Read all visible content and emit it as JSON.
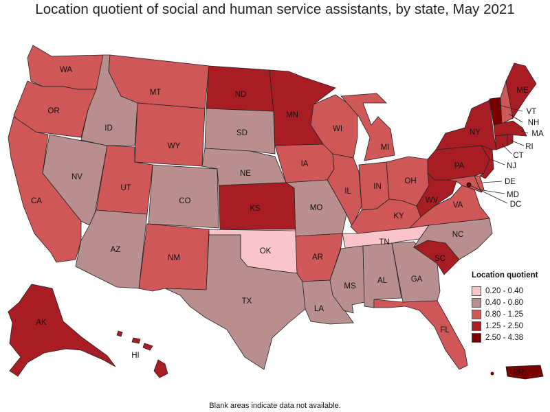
{
  "title": "Location quotient of social and human service assistants, by state, May 2021",
  "footnote": "Blank areas indicate data not available.",
  "legend": {
    "title": "Location quotient",
    "items": [
      {
        "label": "0.20 - 0.40",
        "color": "#f9c5cb"
      },
      {
        "label": "0.40 - 0.80",
        "color": "#b88e8e"
      },
      {
        "label": "0.80 - 1.25",
        "color": "#cf5757"
      },
      {
        "label": "1.25 - 2.50",
        "color": "#a81d24"
      },
      {
        "label": "2.50 - 4.38",
        "color": "#7a0000"
      }
    ]
  },
  "states": {
    "WA": {
      "label": "WA",
      "class": 2
    },
    "OR": {
      "label": "OR",
      "class": 2
    },
    "CA": {
      "label": "CA",
      "class": 2
    },
    "ID": {
      "label": "ID",
      "class": 1
    },
    "NV": {
      "label": "NV",
      "class": 1
    },
    "MT": {
      "label": "MT",
      "class": 2
    },
    "WY": {
      "label": "WY",
      "class": 2
    },
    "UT": {
      "label": "UT",
      "class": 2
    },
    "AZ": {
      "label": "AZ",
      "class": 1
    },
    "CO": {
      "label": "CO",
      "class": 1
    },
    "NM": {
      "label": "NM",
      "class": 2
    },
    "ND": {
      "label": "ND",
      "class": 3
    },
    "SD": {
      "label": "SD",
      "class": 1
    },
    "NE": {
      "label": "NE",
      "class": 1
    },
    "KS": {
      "label": "KS",
      "class": 3
    },
    "OK": {
      "label": "OK",
      "class": 0
    },
    "TX": {
      "label": "TX",
      "class": 1
    },
    "MN": {
      "label": "MN",
      "class": 3
    },
    "IA": {
      "label": "IA",
      "class": 2
    },
    "MO": {
      "label": "MO",
      "class": 1
    },
    "AR": {
      "label": "AR",
      "class": 2
    },
    "LA": {
      "label": "LA",
      "class": 1
    },
    "WI": {
      "label": "WI",
      "class": 2
    },
    "IL": {
      "label": "IL",
      "class": 2
    },
    "MI": {
      "label": "MI",
      "class": 2
    },
    "IN": {
      "label": "IN",
      "class": 2
    },
    "OH": {
      "label": "OH",
      "class": 2
    },
    "KY": {
      "label": "KY",
      "class": 2
    },
    "TN": {
      "label": "TN",
      "class": 0
    },
    "MS": {
      "label": "MS",
      "class": 1
    },
    "AL": {
      "label": "AL",
      "class": 1
    },
    "GA": {
      "label": "GA",
      "class": 1
    },
    "FL": {
      "label": "FL",
      "class": 2
    },
    "SC": {
      "label": "SC",
      "class": 3
    },
    "NC": {
      "label": "NC",
      "class": 1
    },
    "VA": {
      "label": "VA",
      "class": 2
    },
    "WV": {
      "label": "WV",
      "class": 3
    },
    "PA": {
      "label": "PA",
      "class": 3
    },
    "NY": {
      "label": "NY",
      "class": 3
    },
    "ME": {
      "label": "ME",
      "class": 3
    },
    "VT": {
      "label": "VT",
      "class": 4
    },
    "NH": {
      "label": "NH",
      "class": 2
    },
    "MA": {
      "label": "MA",
      "class": 3
    },
    "RI": {
      "label": "RI",
      "class": 3
    },
    "CT": {
      "label": "CT",
      "class": 3
    },
    "NJ": {
      "label": "NJ",
      "class": 3
    },
    "DE": {
      "label": "DE",
      "class": 2
    },
    "MD": {
      "label": "MD",
      "class": 2
    },
    "DC": {
      "label": "DC",
      "class": 4
    },
    "AK": {
      "label": "AK",
      "class": 3
    },
    "HI": {
      "label": "HI",
      "class": 3
    },
    "PR": {
      "label": "PR",
      "class": 4
    }
  }
}
